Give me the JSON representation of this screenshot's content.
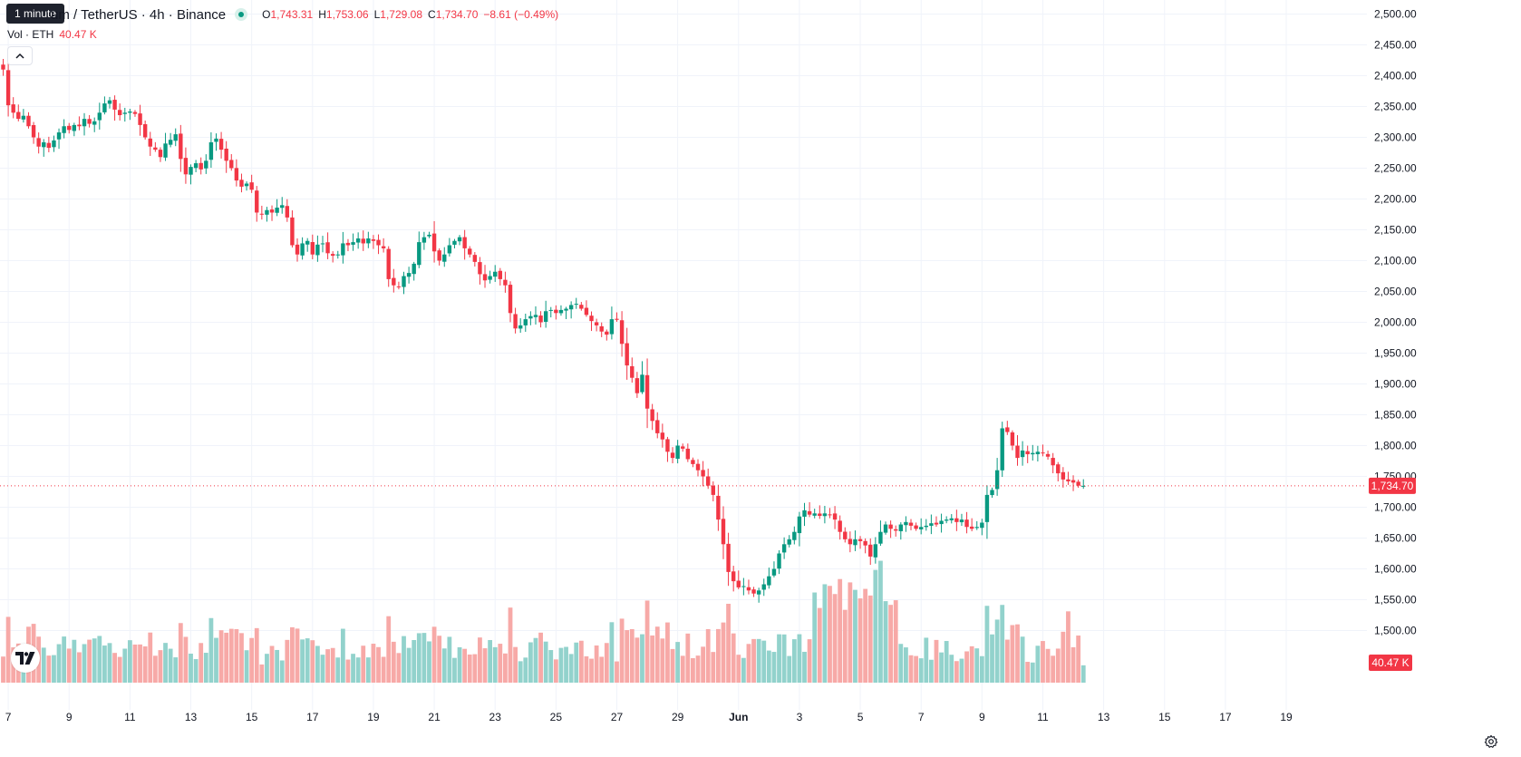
{
  "tooltip": "1 minute",
  "header": {
    "symbol_title": "um / TetherUS · 4h · Binance",
    "ohlc": [
      {
        "k": "O",
        "v": "1,743.31"
      },
      {
        "k": "H",
        "v": "1,753.06"
      },
      {
        "k": "L",
        "v": "1,729.08"
      },
      {
        "k": "C",
        "v": "1,734.70"
      },
      {
        "k": "",
        "v": "−8.61 (−0.49%)"
      }
    ]
  },
  "volume_legend": {
    "label": "Vol · ETH",
    "value": "40.47 K"
  },
  "collapse_icon": "chevron-up-icon",
  "settings_icon": "gear-icon",
  "colors": {
    "up": "#089981",
    "down": "#f23645",
    "up_vol": "#92d2cc",
    "down_vol": "#f7a9a7",
    "grid": "#f0f3fa",
    "text": "#131722"
  },
  "chart_data": {
    "type": "candlestick",
    "timeframe": "4h",
    "price_axis": {
      "labels": [
        "2,500.00",
        "2,450.00",
        "2,400.00",
        "2,350.00",
        "2,300.00",
        "2,250.00",
        "2,200.00",
        "2,150.00",
        "2,100.00",
        "2,050.00",
        "2,000.00",
        "1,950.00",
        "1,900.00",
        "1,850.00",
        "1,800.00",
        "1,750.00",
        "1,700.00",
        "1,650.00",
        "1,600.00",
        "1,550.00",
        "1,500.00"
      ],
      "range": [
        1480,
        2515
      ]
    },
    "time_axis": {
      "labels": [
        {
          "label": "7",
          "bar": 1
        },
        {
          "label": "9",
          "bar": 13
        },
        {
          "label": "11",
          "bar": 25
        },
        {
          "label": "13",
          "bar": 37
        },
        {
          "label": "15",
          "bar": 49
        },
        {
          "label": "17",
          "bar": 61
        },
        {
          "label": "19",
          "bar": 73
        },
        {
          "label": "21",
          "bar": 85
        },
        {
          "label": "23",
          "bar": 97
        },
        {
          "label": "25",
          "bar": 109
        },
        {
          "label": "27",
          "bar": 121
        },
        {
          "label": "29",
          "bar": 133
        },
        {
          "label": "Jun",
          "bar": 145
        },
        {
          "label": "3",
          "bar": 157
        },
        {
          "label": "5",
          "bar": 169
        },
        {
          "label": "7",
          "bar": 181
        },
        {
          "label": "9",
          "bar": 193
        },
        {
          "label": "11",
          "bar": 205
        },
        {
          "label": "13",
          "bar": 217
        },
        {
          "label": "15",
          "bar": 229
        },
        {
          "label": "17",
          "bar": 241
        },
        {
          "label": "19",
          "bar": 253
        }
      ]
    },
    "last_price": {
      "label": "1,734.70",
      "value": 1734.7
    },
    "last_volume": {
      "label": "40.47 K"
    },
    "series": [
      {
        "name": "ETH/USDT",
        "closes": [
          2410,
          2352,
          2340,
          2330,
          2335,
          2318,
          2300,
          2285,
          2292,
          2283,
          2295,
          2308,
          2318,
          2312,
          2320,
          2318,
          2330,
          2322,
          2326,
          2340,
          2355,
          2360,
          2345,
          2336,
          2340,
          2342,
          2338,
          2320,
          2300,
          2285,
          2280,
          2268,
          2290,
          2296,
          2305,
          2265,
          2240,
          2252,
          2258,
          2248,
          2262,
          2292,
          2298,
          2280,
          2262,
          2250,
          2230,
          2220,
          2225,
          2215,
          2178,
          2175,
          2182,
          2178,
          2186,
          2190,
          2170,
          2125,
          2110,
          2128,
          2132,
          2110,
          2126,
          2128,
          2112,
          2108,
          2110,
          2128,
          2125,
          2130,
          2136,
          2128,
          2136,
          2132,
          2125,
          2120,
          2070,
          2060,
          2058,
          2075,
          2080,
          2095,
          2130,
          2138,
          2142,
          2115,
          2100,
          2110,
          2125,
          2132,
          2138,
          2120,
          2110,
          2098,
          2078,
          2068,
          2075,
          2082,
          2070,
          2060,
          2015,
          1990,
          1995,
          2005,
          2010,
          2012,
          2000,
          2018,
          2020,
          2015,
          2020,
          2022,
          2028,
          2030,
          2022,
          2012,
          2002,
          1995,
          1985,
          1980,
          2005,
          2004,
          1965,
          1930,
          1910,
          1885,
          1915,
          1860,
          1840,
          1820,
          1810,
          1790,
          1780,
          1800,
          1795,
          1778,
          1770,
          1760,
          1750,
          1735,
          1720,
          1680,
          1640,
          1595,
          1580,
          1570,
          1572,
          1565,
          1560,
          1565,
          1575,
          1588,
          1600,
          1625,
          1640,
          1648,
          1660,
          1685,
          1695,
          1688,
          1690,
          1686,
          1690,
          1688,
          1680,
          1660,
          1648,
          1640,
          1648,
          1645,
          1638,
          1620,
          1640,
          1660,
          1672,
          1665,
          1662,
          1672,
          1676,
          1670,
          1665,
          1668,
          1670,
          1674,
          1672,
          1678,
          1680,
          1682,
          1676,
          1680,
          1668,
          1665,
          1668,
          1675,
          1720,
          1728,
          1760,
          1828,
          1822,
          1800,
          1780,
          1792,
          1786,
          1788,
          1790,
          1788,
          1782,
          1768,
          1755,
          1745,
          1742,
          1740,
          1735,
          1734.7
        ]
      }
    ]
  }
}
